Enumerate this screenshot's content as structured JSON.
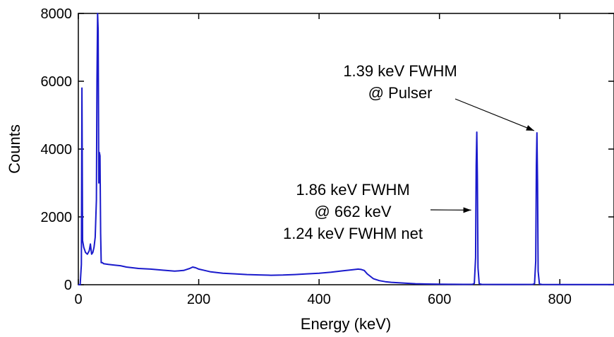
{
  "chart_data": {
    "type": "line",
    "title": "",
    "xlabel": "Energy (keV)",
    "ylabel": "Counts",
    "xlim": [
      0,
      890
    ],
    "ylim": [
      0,
      8000
    ],
    "x_ticks": [
      0,
      200,
      400,
      600,
      800
    ],
    "y_ticks": [
      0,
      2000,
      4000,
      6000,
      8000
    ],
    "grid": false,
    "series_color": "#1a1acc",
    "series": [
      {
        "x": [
          0,
          3,
          5,
          6,
          7,
          9,
          12,
          15,
          18,
          20,
          22,
          24,
          26,
          28,
          30,
          31,
          32,
          33,
          34,
          35,
          36,
          37,
          38,
          40,
          42,
          50,
          60,
          70,
          80,
          90,
          100,
          120,
          140,
          160,
          175,
          185,
          190,
          195,
          200,
          210,
          220,
          240,
          260,
          280,
          300,
          320,
          340,
          360,
          380,
          400,
          420,
          440,
          455,
          465,
          470,
          475,
          480,
          490,
          500,
          510,
          520,
          540,
          560,
          580,
          600,
          620,
          640,
          655,
          658,
          660,
          661,
          662,
          663,
          664,
          666,
          670,
          700,
          730,
          755,
          758,
          760,
          761,
          762,
          763,
          764,
          766,
          770,
          800,
          850,
          890
        ],
        "y": [
          0,
          0,
          600,
          5800,
          1300,
          1100,
          950,
          900,
          1000,
          1200,
          900,
          950,
          1100,
          1400,
          2500,
          6000,
          8000,
          7500,
          3000,
          3900,
          3800,
          1500,
          650,
          650,
          620,
          600,
          580,
          560,
          520,
          500,
          480,
          460,
          430,
          400,
          420,
          480,
          520,
          500,
          460,
          420,
          380,
          340,
          320,
          300,
          290,
          280,
          285,
          300,
          320,
          340,
          370,
          410,
          440,
          460,
          450,
          420,
          320,
          180,
          120,
          90,
          70,
          50,
          30,
          20,
          15,
          12,
          10,
          12,
          40,
          800,
          3500,
          4500,
          3200,
          500,
          30,
          10,
          8,
          8,
          10,
          30,
          700,
          3500,
          4480,
          3000,
          400,
          20,
          8,
          5,
          5,
          5
        ]
      }
    ],
    "annotations": [
      {
        "lines": [
          "1.39 keV FWHM",
          "@ Pulser"
        ],
        "arrow_to": [
          762,
          4480
        ]
      },
      {
        "lines": [
          "1.86 keV FWHM",
          "@ 662 keV",
          "1.24 keV FWHM net"
        ],
        "arrow_to": [
          662,
          2200
        ]
      }
    ]
  }
}
